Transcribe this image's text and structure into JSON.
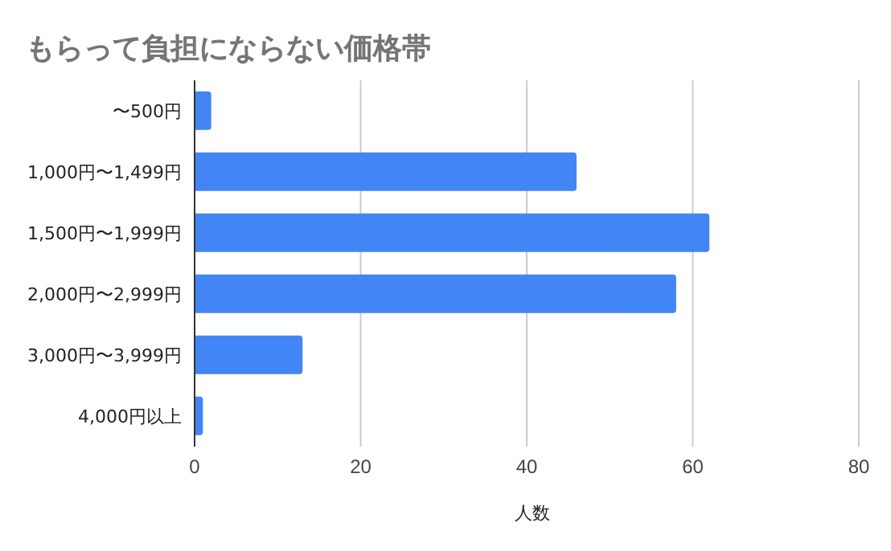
{
  "chart_data": {
    "type": "bar",
    "orientation": "horizontal",
    "title": "もらって負担にならない価格帯",
    "xlabel": "人数",
    "categories": [
      "〜500円",
      "1,000円〜1,499円",
      "1,500円〜1,999円",
      "2,000円〜2,999円",
      "3,000円〜3,999円",
      "4,000円以上"
    ],
    "values": [
      2,
      46,
      62,
      58,
      13,
      1
    ],
    "color": "#4285f4",
    "xlim": [
      0,
      80
    ],
    "xticks": [
      0,
      20,
      40,
      60,
      80
    ],
    "grid": "x"
  }
}
